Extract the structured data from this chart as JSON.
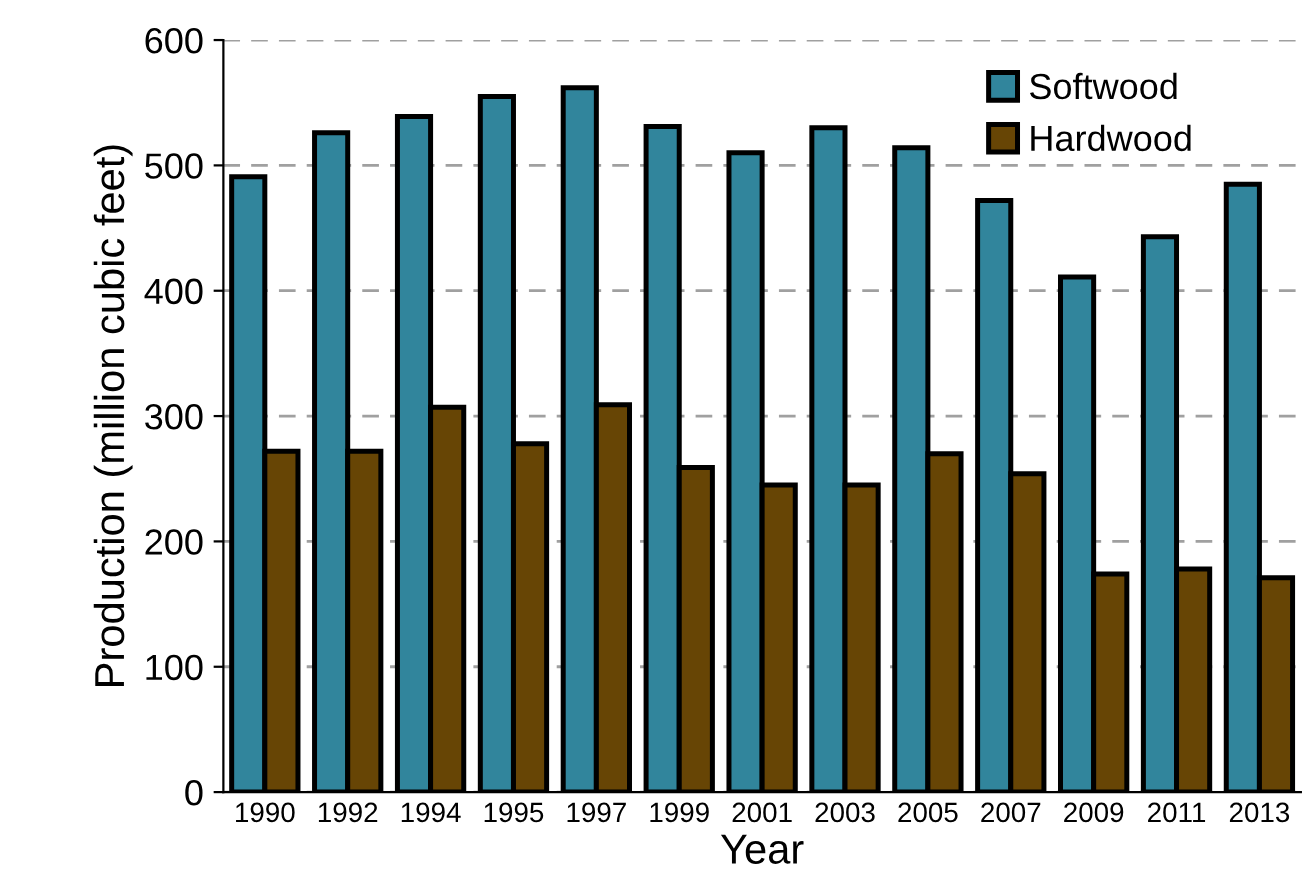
{
  "chart_data": {
    "type": "bar",
    "xlabel": "Year",
    "ylabel": "Production (million cubic feet)",
    "categories": [
      "1990",
      "1992",
      "1994",
      "1995",
      "1997",
      "1999",
      "2001",
      "2003",
      "2005",
      "2007",
      "2009",
      "2011",
      "2013"
    ],
    "series": [
      {
        "name": "Softwood",
        "color": "#31859c",
        "values": [
          491,
          526,
          539,
          555,
          562,
          531,
          510,
          530,
          514,
          472,
          411,
          443,
          485
        ]
      },
      {
        "name": "Hardwood",
        "color": "#674505",
        "values": [
          272,
          272,
          307,
          278,
          309,
          259,
          245,
          245,
          270,
          254,
          174,
          178,
          171
        ]
      }
    ],
    "ylim": [
      0,
      600
    ],
    "yticks": [
      0,
      100,
      200,
      300,
      400,
      500,
      600
    ],
    "grid": "y",
    "legend": "top right"
  }
}
